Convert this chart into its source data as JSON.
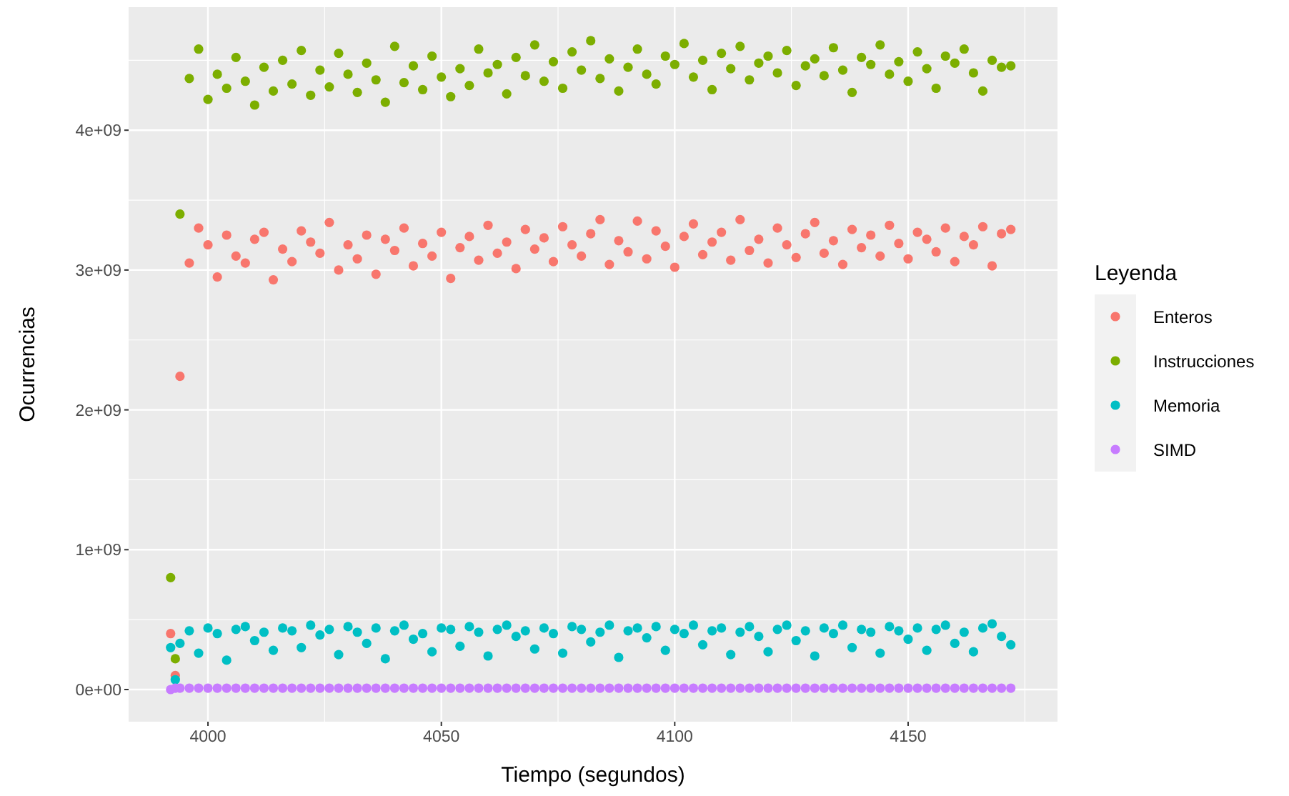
{
  "chart_data": {
    "type": "scatter",
    "xlabel": "Tiempo (segundos)",
    "ylabel": "Ocurrencias",
    "legend_title": "Leyenda",
    "legend": "right",
    "grid": true,
    "marker": "circle",
    "xlim": [
      3983,
      4182
    ],
    "xticks": [
      4000,
      4050,
      4100,
      4150
    ],
    "ylim": [
      -230000000.0,
      4880000000.0
    ],
    "yticks": [
      {
        "value": 0,
        "label": "0e+00"
      },
      {
        "value": 1000000000.0,
        "label": "1e+09"
      },
      {
        "value": 2000000000.0,
        "label": "2e+09"
      },
      {
        "value": 3000000000.0,
        "label": "3e+09"
      },
      {
        "value": 4000000000.0,
        "label": "4e+09"
      }
    ],
    "x": [
      3992,
      3993,
      3994,
      3996,
      3998,
      4000,
      4002,
      4004,
      4006,
      4008,
      4010,
      4012,
      4014,
      4016,
      4018,
      4020,
      4022,
      4024,
      4026,
      4028,
      4030,
      4032,
      4034,
      4036,
      4038,
      4040,
      4042,
      4044,
      4046,
      4048,
      4050,
      4052,
      4054,
      4056,
      4058,
      4060,
      4062,
      4064,
      4066,
      4068,
      4070,
      4072,
      4074,
      4076,
      4078,
      4080,
      4082,
      4084,
      4086,
      4088,
      4090,
      4092,
      4094,
      4096,
      4098,
      4100,
      4102,
      4104,
      4106,
      4108,
      4110,
      4112,
      4114,
      4116,
      4118,
      4120,
      4122,
      4124,
      4126,
      4128,
      4130,
      4132,
      4134,
      4136,
      4138,
      4140,
      4142,
      4144,
      4146,
      4148,
      4150,
      4152,
      4154,
      4156,
      4158,
      4160,
      4162,
      4164,
      4166,
      4168,
      4170,
      4172
    ],
    "series": [
      {
        "name": "Enteros",
        "color": "#f8766d",
        "values": [
          400000000.0,
          100000000.0,
          2240000000.0,
          3050000000.0,
          3300000000.0,
          3180000000.0,
          2950000000.0,
          3250000000.0,
          3100000000.0,
          3050000000.0,
          3220000000.0,
          3270000000.0,
          2930000000.0,
          3150000000.0,
          3060000000.0,
          3280000000.0,
          3200000000.0,
          3120000000.0,
          3340000000.0,
          3000000000.0,
          3180000000.0,
          3080000000.0,
          3250000000.0,
          2970000000.0,
          3220000000.0,
          3140000000.0,
          3300000000.0,
          3030000000.0,
          3190000000.0,
          3100000000.0,
          3270000000.0,
          2940000000.0,
          3160000000.0,
          3240000000.0,
          3070000000.0,
          3320000000.0,
          3120000000.0,
          3200000000.0,
          3010000000.0,
          3290000000.0,
          3150000000.0,
          3230000000.0,
          3060000000.0,
          3310000000.0,
          3180000000.0,
          3100000000.0,
          3260000000.0,
          3360000000.0,
          3040000000.0,
          3210000000.0,
          3130000000.0,
          3350000000.0,
          3080000000.0,
          3280000000.0,
          3170000000.0,
          3020000000.0,
          3240000000.0,
          3330000000.0,
          3110000000.0,
          3200000000.0,
          3270000000.0,
          3070000000.0,
          3360000000.0,
          3140000000.0,
          3220000000.0,
          3050000000.0,
          3300000000.0,
          3180000000.0,
          3090000000.0,
          3260000000.0,
          3340000000.0,
          3120000000.0,
          3210000000.0,
          3040000000.0,
          3290000000.0,
          3160000000.0,
          3250000000.0,
          3100000000.0,
          3320000000.0,
          3190000000.0,
          3080000000.0,
          3270000000.0,
          3220000000.0,
          3130000000.0,
          3300000000.0,
          3060000000.0,
          3240000000.0,
          3180000000.0,
          3310000000.0,
          3030000000.0,
          3260000000.0,
          3290000000.0
        ]
      },
      {
        "name": "Instrucciones",
        "color": "#7cae00",
        "values": [
          800000000.0,
          220000000.0,
          3400000000.0,
          4370000000.0,
          4580000000.0,
          4220000000.0,
          4400000000.0,
          4300000000.0,
          4520000000.0,
          4350000000.0,
          4180000000.0,
          4450000000.0,
          4280000000.0,
          4500000000.0,
          4330000000.0,
          4570000000.0,
          4250000000.0,
          4430000000.0,
          4310000000.0,
          4550000000.0,
          4400000000.0,
          4270000000.0,
          4480000000.0,
          4360000000.0,
          4200000000.0,
          4600000000.0,
          4340000000.0,
          4460000000.0,
          4290000000.0,
          4530000000.0,
          4380000000.0,
          4240000000.0,
          4440000000.0,
          4320000000.0,
          4580000000.0,
          4410000000.0,
          4470000000.0,
          4260000000.0,
          4520000000.0,
          4390000000.0,
          4610000000.0,
          4350000000.0,
          4490000000.0,
          4300000000.0,
          4560000000.0,
          4430000000.0,
          4640000000.0,
          4370000000.0,
          4510000000.0,
          4280000000.0,
          4450000000.0,
          4580000000.0,
          4400000000.0,
          4330000000.0,
          4530000000.0,
          4470000000.0,
          4620000000.0,
          4380000000.0,
          4500000000.0,
          4290000000.0,
          4550000000.0,
          4440000000.0,
          4600000000.0,
          4360000000.0,
          4480000000.0,
          4530000000.0,
          4410000000.0,
          4570000000.0,
          4320000000.0,
          4460000000.0,
          4510000000.0,
          4390000000.0,
          4590000000.0,
          4430000000.0,
          4270000000.0,
          4520000000.0,
          4470000000.0,
          4610000000.0,
          4400000000.0,
          4490000000.0,
          4350000000.0,
          4560000000.0,
          4440000000.0,
          4300000000.0,
          4530000000.0,
          4480000000.0,
          4580000000.0,
          4410000000.0,
          4280000000.0,
          4500000000.0,
          4450000000.0,
          4460000000.0
        ]
      },
      {
        "name": "Memoria",
        "color": "#00bfc4",
        "values": [
          300000000.0,
          70000000.0,
          330000000.0,
          420000000.0,
          260000000.0,
          440000000.0,
          400000000.0,
          210000000.0,
          430000000.0,
          450000000.0,
          350000000.0,
          410000000.0,
          280000000.0,
          440000000.0,
          420000000.0,
          300000000.0,
          460000000.0,
          390000000.0,
          430000000.0,
          250000000.0,
          450000000.0,
          410000000.0,
          330000000.0,
          440000000.0,
          220000000.0,
          420000000.0,
          460000000.0,
          360000000.0,
          400000000.0,
          270000000.0,
          440000000.0,
          430000000.0,
          310000000.0,
          450000000.0,
          410000000.0,
          240000000.0,
          430000000.0,
          460000000.0,
          380000000.0,
          420000000.0,
          290000000.0,
          440000000.0,
          400000000.0,
          260000000.0,
          450000000.0,
          430000000.0,
          340000000.0,
          410000000.0,
          460000000.0,
          230000000.0,
          420000000.0,
          440000000.0,
          370000000.0,
          450000000.0,
          280000000.0,
          430000000.0,
          400000000.0,
          460000000.0,
          320000000.0,
          420000000.0,
          440000000.0,
          250000000.0,
          410000000.0,
          450000000.0,
          380000000.0,
          270000000.0,
          430000000.0,
          460000000.0,
          350000000.0,
          420000000.0,
          240000000.0,
          440000000.0,
          400000000.0,
          460000000.0,
          300000000.0,
          430000000.0,
          410000000.0,
          260000000.0,
          450000000.0,
          420000000.0,
          360000000.0,
          440000000.0,
          280000000.0,
          430000000.0,
          460000000.0,
          330000000.0,
          410000000.0,
          270000000.0,
          440000000.0,
          470000000.0,
          380000000.0,
          320000000.0
        ]
      },
      {
        "name": "SIMD",
        "color": "#c77cff",
        "values": [
          0,
          10000000.0,
          10000000.0,
          10000000.0,
          10000000.0,
          10000000.0,
          10000000.0,
          10000000.0,
          10000000.0,
          10000000.0,
          10000000.0,
          10000000.0,
          10000000.0,
          10000000.0,
          10000000.0,
          10000000.0,
          10000000.0,
          10000000.0,
          10000000.0,
          10000000.0,
          10000000.0,
          10000000.0,
          10000000.0,
          10000000.0,
          10000000.0,
          10000000.0,
          10000000.0,
          10000000.0,
          10000000.0,
          10000000.0,
          10000000.0,
          10000000.0,
          10000000.0,
          10000000.0,
          10000000.0,
          10000000.0,
          10000000.0,
          10000000.0,
          10000000.0,
          10000000.0,
          10000000.0,
          10000000.0,
          10000000.0,
          10000000.0,
          10000000.0,
          10000000.0,
          10000000.0,
          10000000.0,
          10000000.0,
          10000000.0,
          10000000.0,
          10000000.0,
          10000000.0,
          10000000.0,
          10000000.0,
          10000000.0,
          10000000.0,
          10000000.0,
          10000000.0,
          10000000.0,
          10000000.0,
          10000000.0,
          10000000.0,
          10000000.0,
          10000000.0,
          10000000.0,
          10000000.0,
          10000000.0,
          10000000.0,
          10000000.0,
          10000000.0,
          10000000.0,
          10000000.0,
          10000000.0,
          10000000.0,
          10000000.0,
          10000000.0,
          10000000.0,
          10000000.0,
          10000000.0,
          10000000.0,
          10000000.0,
          10000000.0,
          10000000.0,
          10000000.0,
          10000000.0,
          10000000.0,
          10000000.0,
          10000000.0,
          10000000.0,
          10000000.0,
          10000000.0
        ]
      }
    ]
  }
}
